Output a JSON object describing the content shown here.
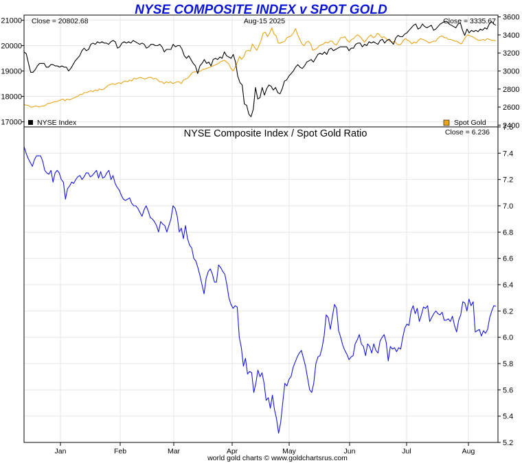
{
  "title": "NYSE COMPOSITE INDEX v SPOT GOLD",
  "date_label": "Aug-15  2025",
  "footer": "world gold charts © www.goldchartsrus.com",
  "colors": {
    "title": "#0a14d8",
    "nyse": "#000000",
    "gold": "#e8a317",
    "ratio": "#1414e6"
  },
  "chart_data": [
    {
      "type": "line",
      "close_left": "Close = 20802.68",
      "close_right": "Close = 3335.67",
      "legend": [
        "NYSE Index",
        "Spot Gold"
      ],
      "legend_placement": "bottom",
      "x_ticks": [
        "Jan",
        "Feb",
        "Mar",
        "Apr",
        "May",
        "Jun",
        "Jul",
        "Aug"
      ],
      "y_left_ticks": [
        17000,
        18000,
        19000,
        20000,
        21000
      ],
      "y_left_range": [
        16800,
        21200
      ],
      "y_right_ticks": [
        2400,
        2600,
        2800,
        3000,
        3200,
        3400,
        3600
      ],
      "y_right_range": [
        2380,
        3620
      ],
      "grid": true,
      "series": [
        {
          "name": "NYSE Index",
          "axis": "left",
          "values": [
            19750,
            19680,
            19300,
            18950,
            18950,
            19050,
            19200,
            19300,
            19300,
            19300,
            19150,
            19150,
            19250,
            19250,
            19200,
            19200,
            19150,
            19200,
            19150,
            19150,
            19000,
            19100,
            19250,
            19400,
            19500,
            19600,
            19800,
            19900,
            19800,
            19850,
            20050,
            20100,
            20050,
            20150,
            20100,
            20150,
            20100,
            20100,
            20050,
            20150,
            20200,
            20150,
            19900,
            19950,
            20100,
            20150,
            20100,
            20150,
            20100,
            20200,
            20150,
            20100,
            20050,
            20100,
            20050,
            19900,
            19950,
            20050,
            20050,
            20000,
            20000,
            20050,
            19950,
            19750,
            19850,
            19850,
            19850,
            20050,
            19950,
            20000,
            20000,
            19850,
            19600,
            19500,
            19600,
            19450,
            19300,
            19200,
            18900,
            19200,
            19300,
            19450,
            19300,
            19350,
            19200,
            19450,
            19500,
            19450,
            19550,
            19500,
            19750,
            19600,
            19550,
            19500,
            19650,
            19350,
            18800,
            18550,
            18450,
            17700,
            17650,
            17300,
            17200,
            17500,
            18350,
            17900,
            17950,
            18350,
            18050,
            18300,
            18450,
            18400,
            18250,
            18350,
            18150,
            18100,
            18300,
            18600,
            18650,
            18800,
            18900,
            19000,
            19150,
            19250,
            19150,
            19100,
            19200,
            19350,
            19400,
            19450,
            19350,
            19500,
            19650,
            19700,
            19650,
            19750,
            19650,
            19850,
            19900,
            19800,
            19850,
            19900,
            19950,
            19950,
            19950,
            19950,
            19800,
            19900,
            19900,
            20050,
            20100,
            20100,
            19950,
            20050,
            20000,
            20150,
            20100,
            20150,
            20100,
            20050,
            20200,
            20250,
            20100,
            20200,
            20250,
            20150,
            20050,
            20300,
            20400,
            20350,
            20350,
            20450,
            20500,
            20600,
            20700,
            20800,
            20850,
            20650,
            20700,
            20850,
            20750,
            20700,
            20750,
            20800,
            20600,
            20650,
            20750,
            20850,
            20900,
            20950,
            20950,
            20850,
            20800,
            20750,
            20700,
            20850,
            20900,
            20600,
            20400,
            20650,
            20500,
            20600,
            20550,
            20600,
            20550,
            20650,
            20600,
            20700,
            20650,
            20850,
            20950,
            20850,
            20800
          ]
        },
        {
          "name": "Spot Gold",
          "axis": "right",
          "values": [
            2630,
            2620,
            2620,
            2600,
            2600,
            2610,
            2610,
            2600,
            2610,
            2610,
            2620,
            2640,
            2640,
            2650,
            2660,
            2660,
            2670,
            2680,
            2690,
            2670,
            2690,
            2680,
            2690,
            2700,
            2710,
            2720,
            2740,
            2740,
            2760,
            2760,
            2770,
            2780,
            2770,
            2790,
            2780,
            2800,
            2790,
            2800,
            2820,
            2840,
            2850,
            2860,
            2850,
            2860,
            2870,
            2860,
            2880,
            2890,
            2880,
            2900,
            2890,
            2920,
            2910,
            2920,
            2930,
            2920,
            2910,
            2920,
            2930,
            2930,
            2910,
            2920,
            2900,
            2880,
            2880,
            2860,
            2880,
            2870,
            2880,
            2860,
            2870,
            2880,
            2880,
            2860,
            2900,
            2910,
            2920,
            2950,
            2980,
            2990,
            2990,
            2990,
            3000,
            3020,
            3020,
            3030,
            3040,
            3050,
            3060,
            3070,
            3080,
            3100,
            3110,
            3120,
            3100,
            3080,
            3030,
            3000,
            3040,
            3100,
            3160,
            3130,
            3160,
            3220,
            3230,
            3220,
            3300,
            3260,
            3230,
            3280,
            3340,
            3420,
            3430,
            3380,
            3420,
            3480,
            3410,
            3390,
            3310,
            3310,
            3320,
            3330,
            3370,
            3380,
            3390,
            3420,
            3470,
            3400,
            3350,
            3300,
            3280,
            3320,
            3330,
            3300,
            3230,
            3240,
            3250,
            3280,
            3290,
            3300,
            3320,
            3310,
            3330,
            3330,
            3300,
            3290,
            3330,
            3370,
            3370,
            3380,
            3340,
            3320,
            3350,
            3360,
            3390,
            3400,
            3380,
            3350,
            3320,
            3350,
            3380,
            3400,
            3370,
            3380,
            3420,
            3400,
            3370,
            3380,
            3360,
            3340,
            3330,
            3320,
            3330,
            3300,
            3290,
            3300,
            3340,
            3360,
            3340,
            3330,
            3300,
            3320,
            3310,
            3340,
            3360,
            3350,
            3340,
            3330,
            3310,
            3320,
            3330,
            3330,
            3360,
            3380,
            3390,
            3370,
            3370,
            3350,
            3350,
            3340,
            3330,
            3330,
            3310,
            3300,
            3340,
            3380,
            3400,
            3390,
            3380,
            3370,
            3350,
            3340,
            3340,
            3350,
            3340,
            3360,
            3350,
            3340,
            3340,
            3335
          ]
        }
      ]
    },
    {
      "type": "line",
      "title": "NYSE Composite Index  /  Spot Gold Ratio",
      "close": "Close = 6.236",
      "x_ticks": [
        "Jan",
        "Feb",
        "Mar",
        "Apr",
        "May",
        "Jun",
        "Jul",
        "Aug"
      ],
      "y_ticks": [
        5.2,
        5.4,
        5.6,
        5.8,
        6.0,
        6.2,
        6.4,
        6.6,
        6.8,
        7.0,
        7.2,
        7.4,
        7.6
      ],
      "y_range": [
        5.2,
        7.6
      ],
      "grid": true,
      "series": [
        {
          "name": "NYSE Composite Index / Spot Gold Ratio",
          "values": [
            7.45,
            7.4,
            7.36,
            7.33,
            7.3,
            7.35,
            7.38,
            7.38,
            7.38,
            7.34,
            7.27,
            7.25,
            7.24,
            7.27,
            7.18,
            7.25,
            7.27,
            7.25,
            7.2,
            7.18,
            7.05,
            7.13,
            7.15,
            7.18,
            7.17,
            7.2,
            7.22,
            7.23,
            7.2,
            7.22,
            7.25,
            7.25,
            7.22,
            7.23,
            7.25,
            7.27,
            7.21,
            7.26,
            7.21,
            7.22,
            7.25,
            7.27,
            7.2,
            7.23,
            7.17,
            7.14,
            7.12,
            7.08,
            7.05,
            7.04,
            7.05,
            7.06,
            7.02,
            7.0,
            7.0,
            6.98,
            6.95,
            6.92,
            6.97,
            7.0,
            6.96,
            6.91,
            6.9,
            6.88,
            6.85,
            6.8,
            6.88,
            6.86,
            6.85,
            6.8,
            6.85,
            6.9,
            7.0,
            6.98,
            6.92,
            6.8,
            6.83,
            6.75,
            6.85,
            6.75,
            6.7,
            6.68,
            6.6,
            6.58,
            6.53,
            6.47,
            6.4,
            6.33,
            6.45,
            6.5,
            6.52,
            6.48,
            6.42,
            6.42,
            6.55,
            6.53,
            6.5,
            6.48,
            6.4,
            6.3,
            6.25,
            6.22,
            6.24,
            6.23,
            6.0,
            5.92,
            5.78,
            5.84,
            5.72,
            5.74,
            5.73,
            5.58,
            5.65,
            5.75,
            5.7,
            5.73,
            5.65,
            5.52,
            5.54,
            5.46,
            5.56,
            5.45,
            5.38,
            5.27,
            5.35,
            5.5,
            5.65,
            5.63,
            5.68,
            5.7,
            5.77,
            5.81,
            5.85,
            5.88,
            5.9,
            5.84,
            5.78,
            5.69,
            5.6,
            5.58,
            5.65,
            5.8,
            5.85,
            5.86,
            5.92,
            6.01,
            6.17,
            6.15,
            6.06,
            6.16,
            6.25,
            6.22,
            6.05,
            6.0,
            5.94,
            5.9,
            5.87,
            5.83,
            5.85,
            5.86,
            5.95,
            5.98,
            6.02,
            5.95,
            5.93,
            5.86,
            5.95,
            5.93,
            5.88,
            5.95,
            5.9,
            5.88,
            5.97,
            6.0,
            6.02,
            5.96,
            5.82,
            5.93,
            5.91,
            5.92,
            5.89,
            5.92,
            5.91,
            6.0,
            6.07,
            6.1,
            6.09,
            6.2,
            6.24,
            6.18,
            6.22,
            6.12,
            6.17,
            6.23,
            6.22,
            6.24,
            6.12,
            6.15,
            6.18,
            6.2,
            6.18,
            6.17,
            6.19,
            6.13,
            6.13,
            6.14,
            6.12,
            6.16,
            6.09,
            6.04,
            6.13,
            6.17,
            6.27,
            6.26,
            6.2,
            6.29,
            6.24,
            6.27,
            6.04,
            6.05,
            6.06,
            6.01,
            6.05,
            6.03,
            6.06,
            6.15,
            6.2,
            6.24,
            6.236
          ]
        }
      ]
    }
  ]
}
